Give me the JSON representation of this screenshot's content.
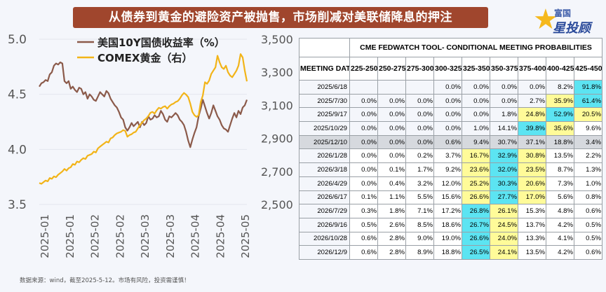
{
  "title": "从债券到黄金的避险资产被抛售，市场削减对美联储降息的押注",
  "logo": {
    "brand_top": "富国",
    "brand_main": "星投顾"
  },
  "source_note": "数据来源：wind，截至2025-5-12。市场有风险，投资需谨慎！",
  "colors": {
    "yield_line": "#8b5a4a",
    "gold_line": "#f2b418",
    "title_bg": "#a0462d",
    "cyan": "#5ce4f2",
    "yellow": "#fffb99",
    "highlight_row": "#d6d9de"
  },
  "chart_data": {
    "type": "line",
    "x_ticks": [
      "2025-01",
      "2025-01",
      "2025-02",
      "2025-02",
      "2025-03",
      "2025-03",
      "2025-04",
      "2025-04",
      "2025-05"
    ],
    "left_axis": {
      "ticks": [
        "5.0",
        "4.5",
        "4.0",
        "3.5"
      ],
      "ylim": [
        3.5,
        5.0
      ]
    },
    "right_axis": {
      "ticks": [
        "3,500",
        "3,300",
        "3,100",
        "2,900",
        "2,700",
        "2,500"
      ],
      "ylim": [
        2500,
        3500
      ]
    },
    "legend": [
      "美国10Y国债收益率（%）",
      "COMEX黄金（右）"
    ],
    "series": [
      {
        "name": "美国10Y国债收益率（%）",
        "axis": "left",
        "values": [
          4.57,
          4.6,
          4.61,
          4.63,
          4.62,
          4.68,
          4.7,
          4.76,
          4.78,
          4.77,
          4.79,
          4.78,
          4.62,
          4.6,
          4.62,
          4.55,
          4.57,
          4.54,
          4.52,
          4.56,
          4.55,
          4.5,
          4.52,
          4.46,
          4.5,
          4.48,
          4.45,
          4.44,
          4.48,
          4.52,
          4.5,
          4.48,
          4.53,
          4.51,
          4.46,
          4.43,
          4.4,
          4.38,
          4.34,
          4.29,
          4.27,
          4.2,
          4.17,
          4.2,
          4.24,
          4.21,
          4.23,
          4.25,
          4.2,
          4.25,
          4.22,
          4.24,
          4.3,
          4.27,
          4.28,
          4.31,
          4.29,
          4.3,
          4.35,
          4.32,
          4.27,
          4.25,
          4.3,
          4.29,
          4.31,
          4.33,
          4.31,
          4.27,
          4.25,
          4.22,
          4.16,
          4.08,
          4.02,
          4.09,
          4.15,
          4.2,
          4.3,
          4.37,
          4.45,
          4.39,
          4.33,
          4.28,
          4.33,
          4.4,
          4.35,
          4.3,
          4.27,
          4.22,
          4.19,
          4.18,
          4.16,
          4.22,
          4.28,
          4.33,
          4.29,
          4.35,
          4.32,
          4.38,
          4.4,
          4.45
        ]
      },
      {
        "name": "COMEX黄金（右）",
        "axis": "right",
        "values": [
          2630,
          2625,
          2635,
          2645,
          2640,
          2660,
          2655,
          2670,
          2665,
          2680,
          2690,
          2700,
          2715,
          2705,
          2720,
          2725,
          2745,
          2740,
          2760,
          2755,
          2770,
          2780,
          2775,
          2795,
          2800,
          2805,
          2820,
          2815,
          2840,
          2850,
          2860,
          2870,
          2880,
          2875,
          2900,
          2905,
          2920,
          2930,
          2935,
          2940,
          2950,
          2945,
          2910,
          2920,
          2925,
          2935,
          2940,
          2960,
          2980,
          2995,
          3010,
          3020,
          3035,
          3055,
          3060,
          3050,
          3070,
          3085,
          3080,
          3090,
          3095,
          3080,
          3095,
          3105,
          3110,
          3120,
          3125,
          3140,
          3160,
          3175,
          3165,
          3150,
          3110,
          3060,
          3040,
          3030,
          3040,
          3120,
          3160,
          3240,
          3230,
          3250,
          3290,
          3310,
          3330,
          3400,
          3360,
          3330,
          3320,
          3340,
          3300,
          3280,
          3270,
          3290,
          3310,
          3340,
          3410,
          3390,
          3310,
          3245
        ]
      }
    ]
  },
  "fedwatch": {
    "tool_title": "CME FEDWATCH TOOL- CONDITIONAL MEETING PROBABILITIES",
    "date_header": "MEETING DATE",
    "columns": [
      "225-250",
      "250-275",
      "275-300",
      "300-325",
      "325-350",
      "350-375",
      "375-400",
      "400-425",
      "425-450"
    ],
    "rows": [
      {
        "date": "2025/6/18",
        "values": [
          "",
          "",
          "",
          "0.0%",
          "0.0%",
          "0.0%",
          "0.0%",
          "8.2%",
          "91.8%"
        ],
        "highlight": false
      },
      {
        "date": "2025/7/30",
        "values": [
          "0.0%",
          "0.0%",
          "0.0%",
          "0.0%",
          "0.0%",
          "0.0%",
          "2.7%",
          "35.9%",
          "61.4%"
        ],
        "highlight": false
      },
      {
        "date": "2025/9/17",
        "values": [
          "0.0%",
          "0.0%",
          "0.0%",
          "0.0%",
          "0.0%",
          "1.8%",
          "24.8%",
          "52.9%",
          "20.5%"
        ],
        "highlight": false
      },
      {
        "date": "2025/10/29",
        "values": [
          "0.0%",
          "0.0%",
          "0.0%",
          "0.0%",
          "1.0%",
          "14.1%",
          "39.8%",
          "35.6%",
          "9.6%"
        ],
        "highlight": false
      },
      {
        "date": "2025/12/10",
        "values": [
          "0.0%",
          "0.0%",
          "0.0%",
          "0.6%",
          "9.4%",
          "30.7%",
          "37.1%",
          "18.8%",
          "3.4%"
        ],
        "highlight": true
      },
      {
        "date": "2026/1/28",
        "values": [
          "0.0%",
          "0.0%",
          "0.2%",
          "3.7%",
          "16.7%",
          "32.9%",
          "30.8%",
          "13.5%",
          "2.2%"
        ],
        "highlight": false
      },
      {
        "date": "2026/3/18",
        "values": [
          "0.0%",
          "0.1%",
          "1.7%",
          "9.2%",
          "23.6%",
          "32.0%",
          "23.5%",
          "8.7%",
          "1.3%"
        ],
        "highlight": false
      },
      {
        "date": "2026/4/29",
        "values": [
          "0.0%",
          "0.4%",
          "3.2%",
          "12.0%",
          "25.2%",
          "30.3%",
          "20.6%",
          "7.3%",
          "1.0%"
        ],
        "highlight": false
      },
      {
        "date": "2026/6/17",
        "values": [
          "0.1%",
          "1.1%",
          "5.5%",
          "15.6%",
          "26.6%",
          "27.7%",
          "17.0%",
          "5.6%",
          "0.8%"
        ],
        "highlight": false
      },
      {
        "date": "2026/7/29",
        "values": [
          "0.3%",
          "1.8%",
          "7.1%",
          "17.2%",
          "26.8%",
          "26.1%",
          "15.3%",
          "4.8%",
          "0.6%"
        ],
        "highlight": false
      },
      {
        "date": "2026/9/16",
        "values": [
          "0.5%",
          "2.6%",
          "8.5%",
          "18.6%",
          "26.7%",
          "24.5%",
          "13.7%",
          "4.2%",
          "0.5%"
        ],
        "highlight": false
      },
      {
        "date": "2026/10/28",
        "values": [
          "0.6%",
          "2.8%",
          "9.0%",
          "19.0%",
          "26.6%",
          "24.0%",
          "13.3%",
          "4.1%",
          "0.5%"
        ],
        "highlight": false
      },
      {
        "date": "2026/12/9",
        "values": [
          "0.6%",
          "2.8%",
          "8.9%",
          "18.8%",
          "26.5%",
          "24.1%",
          "13.5%",
          "4.2%",
          "0.6%"
        ],
        "highlight": false
      }
    ],
    "cell_colors": [
      [
        "",
        "",
        "",
        "",
        "",
        "",
        "",
        "",
        "cyan"
      ],
      [
        "",
        "",
        "",
        "",
        "",
        "",
        "",
        "yellow",
        "cyan"
      ],
      [
        "",
        "",
        "",
        "",
        "",
        "",
        "yellow",
        "cyan",
        "yellow"
      ],
      [
        "",
        "",
        "",
        "",
        "",
        "",
        "cyan",
        "yellow",
        "white"
      ],
      [
        "",
        "",
        "",
        "",
        "",
        "",
        "",
        "",
        ""
      ],
      [
        "white",
        "white",
        "white",
        "white",
        "yellow",
        "cyan",
        "yellow",
        "white",
        "white"
      ],
      [
        "white",
        "white",
        "white",
        "white",
        "yellow",
        "cyan",
        "yellow",
        "white",
        "white"
      ],
      [
        "white",
        "white",
        "white",
        "white",
        "yellow",
        "cyan",
        "yellow",
        "white",
        "white"
      ],
      [
        "white",
        "white",
        "white",
        "white",
        "yellow",
        "cyan",
        "yellow",
        "white",
        "white"
      ],
      [
        "white",
        "white",
        "white",
        "white",
        "cyan",
        "yellow",
        "white",
        "white",
        "white"
      ],
      [
        "white",
        "white",
        "white",
        "white",
        "cyan",
        "yellow",
        "white",
        "white",
        "white"
      ],
      [
        "white",
        "white",
        "white",
        "white",
        "cyan",
        "yellow",
        "white",
        "white",
        "white"
      ],
      [
        "white",
        "white",
        "white",
        "white",
        "cyan",
        "yellow",
        "white",
        "white",
        "white"
      ]
    ]
  }
}
